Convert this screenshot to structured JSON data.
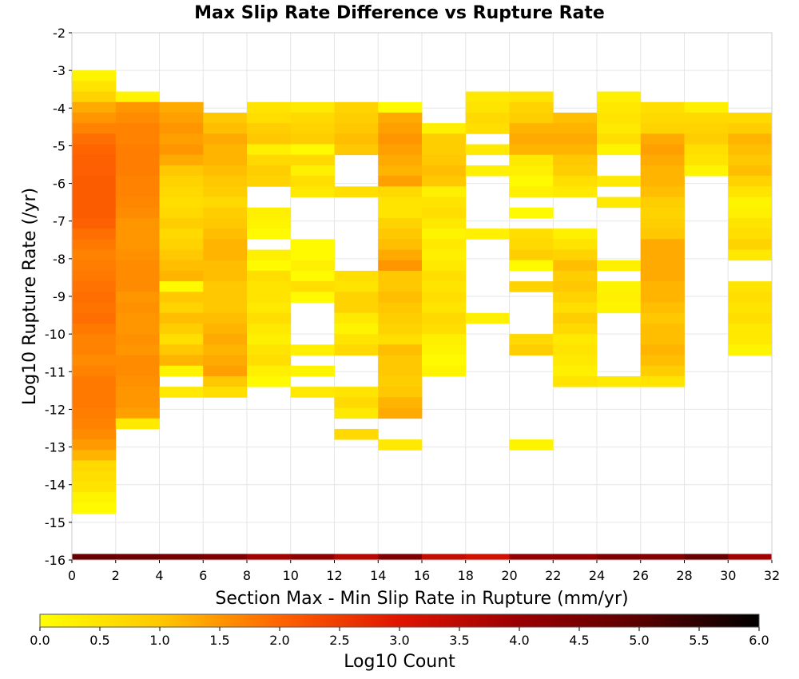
{
  "chart_data": {
    "type": "heatmap",
    "title": "Max Slip Rate Difference vs Rupture Rate",
    "xlabel": "Section Max - Min Slip Rate in Rupture (mm/yr)",
    "ylabel": "Log10 Rupture Rate (/yr)",
    "xlim": [
      0,
      32
    ],
    "ylim": [
      -16,
      -2
    ],
    "x_ticks": [
      "0",
      "2",
      "4",
      "6",
      "8",
      "10",
      "12",
      "14",
      "16",
      "18",
      "20",
      "22",
      "24",
      "26",
      "28",
      "30",
      "32"
    ],
    "y_ticks": [
      "-2",
      "-3",
      "-4",
      "-5",
      "-6",
      "-7",
      "-8",
      "-9",
      "-10",
      "-11",
      "-12",
      "-13",
      "-14",
      "-15",
      "-16"
    ],
    "x_bin_width": 2,
    "y_bin_height": 0.28,
    "grid": true,
    "colorscale": {
      "label": "Log10 Count",
      "min": 0.0,
      "max": 6.0,
      "ticks": [
        "0.0",
        "0.5",
        "1.0",
        "1.5",
        "2.0",
        "2.5",
        "3.0",
        "3.5",
        "4.0",
        "4.5",
        "5.0",
        "5.5",
        "6.0"
      ],
      "stops": [
        {
          "value": 0.0,
          "color": "#ffff00"
        },
        {
          "value": 1.0,
          "color": "#ffc800"
        },
        {
          "value": 2.0,
          "color": "#ff6400"
        },
        {
          "value": 3.0,
          "color": "#e01400"
        },
        {
          "value": 4.0,
          "color": "#9a0000"
        },
        {
          "value": 5.0,
          "color": "#5a0000"
        },
        {
          "value": 6.0,
          "color": "#000000"
        }
      ]
    },
    "marginal_row": {
      "y_range": [
        -16,
        -15.84
      ],
      "values": [
        4.8,
        4.7,
        4.6,
        4.4,
        3.9,
        4.2,
        3.6,
        4.4,
        3.4,
        3.2,
        4.1,
        4.1,
        4.4,
        4.3,
        4.8,
        3.9
      ]
    },
    "columns": [
      {
        "x0": 0,
        "y_top": -3.0,
        "values": [
          0.2,
          0.5,
          0.8,
          1.3,
          1.5,
          1.7,
          1.9,
          2.0,
          2.05,
          2.05,
          2.1,
          2.1,
          2.1,
          2.1,
          2.05,
          1.9,
          1.8,
          1.7,
          1.75,
          1.8,
          1.85,
          1.9,
          1.85,
          1.9,
          1.8,
          1.7,
          1.7,
          1.6,
          1.7,
          1.8,
          1.8,
          1.8,
          1.75,
          1.7,
          1.6,
          1.45,
          1.2,
          0.7,
          0.6,
          0.5,
          0.2,
          0.1
        ]
      },
      {
        "x0": 2,
        "y_top": -3.56,
        "values": [
          0.2,
          1.5,
          1.6,
          1.7,
          1.7,
          1.75,
          1.75,
          1.75,
          1.7,
          1.7,
          1.65,
          1.6,
          1.5,
          1.5,
          1.5,
          1.55,
          1.6,
          1.6,
          1.6,
          1.5,
          1.55,
          1.5,
          1.5,
          1.55,
          1.5,
          1.6,
          1.6,
          1.55,
          1.5,
          1.5,
          1.4,
          0.4
        ]
      },
      {
        "x0": 4,
        "y_top": -3.84,
        "values": [
          1.3,
          1.4,
          1.5,
          1.4,
          1.5,
          1.3,
          1.0,
          0.8,
          0.7,
          0.6,
          0.7,
          0.9,
          0.7,
          0.8,
          1.0,
          1.1,
          1.2,
          0.1,
          1.0,
          0.8,
          1.1,
          0.9,
          0.6,
          1.0,
          1.2,
          0.2,
          null,
          0.4
        ]
      },
      {
        "x0": 6,
        "y_top": -4.12,
        "values": [
          1.0,
          1.1,
          1.3,
          1.2,
          1.2,
          1.1,
          1.0,
          0.9,
          0.7,
          0.9,
          1.0,
          1.1,
          1.2,
          1.2,
          1.1,
          1.1,
          1.0,
          1.0,
          1.0,
          1.1,
          1.2,
          1.3,
          1.2,
          1.3,
          1.4,
          1.0,
          0.6
        ]
      },
      {
        "x0": 8,
        "y_top": -3.84,
        "values": [
          0.5,
          0.6,
          0.9,
          1.0,
          0.3,
          0.7,
          0.9,
          0.8,
          null,
          null,
          0.3,
          0.2,
          0.1,
          null,
          0.3,
          0.1,
          0.6,
          0.5,
          0.5,
          0.4,
          0.6,
          0.4,
          0.3,
          0.5,
          0.6,
          0.3,
          0.1
        ]
      },
      {
        "x0": 10,
        "y_top": -3.84,
        "values": [
          0.4,
          0.7,
          0.8,
          0.9,
          0.1,
          0.7,
          0.3,
          0.6,
          0.4,
          null,
          null,
          null,
          null,
          0.1,
          0.1,
          0.3,
          0.1,
          0.6,
          0.1,
          null,
          null,
          null,
          null,
          0.3,
          null,
          0.2,
          null,
          0.4
        ]
      },
      {
        "x0": 12,
        "y_top": -3.84,
        "values": [
          0.8,
          0.9,
          1.0,
          1.1,
          1.0,
          null,
          null,
          null,
          0.6,
          null,
          null,
          null,
          null,
          null,
          null,
          null,
          0.6,
          0.5,
          0.8,
          0.8,
          0.4,
          0.2,
          0.5,
          0.7,
          null,
          null,
          null,
          0.5,
          0.7,
          0.4,
          null,
          0.7
        ]
      },
      {
        "x0": 14,
        "y_top": -3.84,
        "values": [
          0.1,
          1.3,
          1.4,
          1.5,
          1.4,
          1.3,
          1.2,
          1.4,
          0.7,
          0.5,
          0.5,
          0.8,
          1.0,
          1.1,
          1.3,
          1.5,
          1.0,
          1.0,
          1.1,
          1.0,
          0.9,
          0.8,
          0.6,
          1.1,
          1.0,
          1.0,
          0.9,
          1.0,
          1.2,
          1.3,
          null,
          null,
          0.4
        ]
      },
      {
        "x0": 16,
        "y_top": -4.4,
        "values": [
          0.3,
          0.9,
          0.9,
          1.0,
          1.1,
          1.0,
          0.3,
          0.5,
          0.6,
          0.4,
          0.2,
          0.4,
          0.3,
          0.4,
          0.6,
          0.5,
          0.6,
          0.5,
          0.7,
          0.6,
          0.3,
          0.2,
          0.1,
          0.2
        ]
      },
      {
        "x0": 18,
        "y_top": -3.56,
        "values": [
          0.4,
          0.5,
          0.7,
          0.6,
          null,
          0.4,
          null,
          0.3,
          null,
          null,
          null,
          null,
          null,
          0.3,
          null,
          null,
          null,
          null,
          null,
          null,
          null,
          0.3
        ]
      },
      {
        "x0": 20,
        "y_top": -3.56,
        "values": [
          0.5,
          0.8,
          0.9,
          1.2,
          1.3,
          1.2,
          0.4,
          0.3,
          0.1,
          0.3,
          null,
          0.1,
          null,
          0.6,
          0.7,
          0.9,
          0.1,
          null,
          0.8,
          null,
          null,
          null,
          null,
          0.7,
          0.9,
          null,
          null,
          null,
          null,
          null,
          null,
          null,
          null,
          0.2
        ]
      },
      {
        "x0": 22,
        "y_top": -4.12,
        "values": [
          1.1,
          1.2,
          1.3,
          1.2,
          1.0,
          0.9,
          0.6,
          0.4,
          null,
          null,
          null,
          0.3,
          0.5,
          0.8,
          1.1,
          0.9,
          1.0,
          0.8,
          0.6,
          0.9,
          0.7,
          0.4,
          0.5,
          0.4,
          0.3,
          0.5
        ]
      },
      {
        "x0": 24,
        "y_top": -3.56,
        "values": [
          0.3,
          0.4,
          0.5,
          0.4,
          0.6,
          0.2,
          null,
          null,
          0.4,
          null,
          0.4,
          null,
          null,
          null,
          null,
          null,
          0.3,
          null,
          0.2,
          0.3,
          0.2,
          null,
          null,
          null,
          null,
          null,
          null,
          0.4
        ]
      },
      {
        "x0": 26,
        "y_top": -3.84,
        "values": [
          0.6,
          0.7,
          0.8,
          1.3,
          1.4,
          1.3,
          1.2,
          1.2,
          1.1,
          0.9,
          0.8,
          0.9,
          1.0,
          1.3,
          1.3,
          1.3,
          1.3,
          1.2,
          1.2,
          1.1,
          1.0,
          1.1,
          1.1,
          1.2,
          1.1,
          0.9,
          0.5
        ]
      },
      {
        "x0": 28,
        "y_top": -3.84,
        "values": [
          0.3,
          0.7,
          0.8,
          0.9,
          0.6,
          0.5,
          0.2
        ]
      },
      {
        "x0": 30,
        "y_top": -4.12,
        "values": [
          0.7,
          0.9,
          1.2,
          1.1,
          1.0,
          1.1,
          0.8,
          0.5,
          0.2,
          0.3,
          0.5,
          0.6,
          0.8,
          0.4,
          null,
          null,
          0.5,
          0.6,
          0.5,
          0.6,
          0.4,
          0.4,
          0.2
        ]
      }
    ]
  }
}
